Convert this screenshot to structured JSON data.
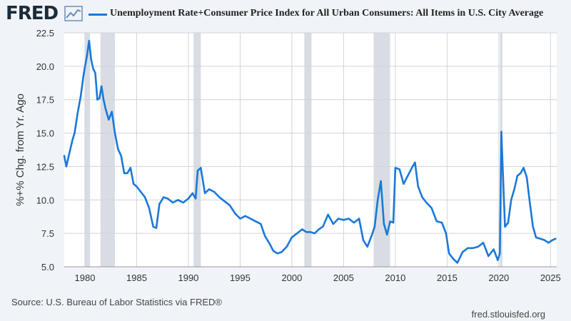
{
  "header": {
    "logo_text": "FRED",
    "logo_icon": "line-chart-icon",
    "title": "Unemployment Rate+Consumer Price Index for All Urban Consumers: All Items in U.S. City Average"
  },
  "footer": {
    "source": "Source: U.S. Bureau of Labor Statistics via FRED®",
    "site": "fred.stlouisfed.org"
  },
  "colors": {
    "line": "#1a78d8",
    "recession": "#d9dde3",
    "grid": "#cfd5dc",
    "background": "#f0f4f8",
    "plot_bg": "#ffffff"
  },
  "chart_data": {
    "type": "line",
    "title": "Unemployment Rate+Consumer Price Index for All Urban Consumers: All Items in U.S. City Average",
    "xlabel": "",
    "ylabel": "%+% Chg. from Yr. Ago",
    "xlim": [
      1978.0,
      2025.6
    ],
    "ylim": [
      5.0,
      22.5
    ],
    "yticks": [
      "5.0",
      "7.5",
      "10.0",
      "12.5",
      "15.0",
      "17.5",
      "20.0",
      "22.5"
    ],
    "xticks": [
      "1980",
      "1985",
      "1990",
      "1995",
      "2000",
      "2005",
      "2010",
      "2015",
      "2020",
      "2025"
    ],
    "grid": true,
    "recessions": [
      [
        1980.0,
        1980.5
      ],
      [
        1981.5,
        1982.9
      ],
      [
        1990.5,
        1991.2
      ],
      [
        2001.2,
        2001.9
      ],
      [
        2007.9,
        2009.5
      ],
      [
        2020.1,
        2020.35
      ]
    ],
    "series": [
      {
        "x": [
          1978.0,
          1978.2,
          1978.5,
          1978.8,
          1979.0,
          1979.3,
          1979.6,
          1979.9,
          1980.2,
          1980.4,
          1980.6,
          1980.8,
          1981.0,
          1981.2,
          1981.4,
          1981.6,
          1981.8,
          1982.0,
          1982.3,
          1982.6,
          1982.9,
          1983.2,
          1983.5,
          1983.8,
          1984.1,
          1984.4,
          1984.7,
          1985.0,
          1985.4,
          1985.8,
          1986.2,
          1986.6,
          1986.9,
          1987.2,
          1987.6,
          1988.0,
          1988.5,
          1989.0,
          1989.5,
          1990.0,
          1990.4,
          1990.7,
          1990.9,
          1991.2,
          1991.6,
          1992.0,
          1992.5,
          1993.0,
          1993.5,
          1994.0,
          1994.5,
          1995.0,
          1995.5,
          1996.0,
          1996.5,
          1997.0,
          1997.4,
          1997.8,
          1998.2,
          1998.6,
          1999.0,
          1999.5,
          2000.0,
          2000.5,
          2001.0,
          2001.4,
          2001.8,
          2002.2,
          2002.6,
          2003.0,
          2003.5,
          2004.0,
          2004.5,
          2005.0,
          2005.5,
          2006.0,
          2006.5,
          2006.9,
          2007.3,
          2007.7,
          2008.0,
          2008.3,
          2008.6,
          2008.9,
          2009.2,
          2009.5,
          2009.8,
          2010.0,
          2010.4,
          2010.8,
          2011.2,
          2011.6,
          2011.9,
          2012.2,
          2012.6,
          2013.0,
          2013.5,
          2014.0,
          2014.5,
          2014.9,
          2015.2,
          2015.6,
          2016.0,
          2016.5,
          2017.0,
          2017.5,
          2018.0,
          2018.5,
          2019.0,
          2019.5,
          2019.9,
          2020.1,
          2020.25,
          2020.4,
          2020.6,
          2020.9,
          2021.2,
          2021.5,
          2021.8,
          2022.1,
          2022.4,
          2022.7,
          2023.0,
          2023.3,
          2023.6,
          2024.0,
          2024.4,
          2024.8,
          2025.2,
          2025.5
        ],
        "values": [
          13.3,
          12.5,
          13.5,
          14.5,
          15.0,
          16.5,
          17.8,
          19.5,
          20.8,
          21.9,
          20.5,
          19.8,
          19.5,
          17.5,
          17.6,
          18.5,
          17.5,
          16.8,
          16.0,
          16.6,
          15.0,
          13.8,
          13.3,
          12.0,
          12.0,
          12.4,
          11.2,
          11.0,
          10.6,
          10.2,
          9.4,
          8.0,
          7.9,
          9.7,
          10.2,
          10.1,
          9.8,
          10.0,
          9.8,
          10.1,
          10.5,
          10.1,
          12.2,
          12.4,
          10.5,
          10.8,
          10.6,
          10.2,
          9.9,
          9.6,
          9.0,
          8.6,
          8.8,
          8.6,
          8.4,
          8.2,
          7.3,
          6.8,
          6.2,
          6.0,
          6.1,
          6.5,
          7.2,
          7.5,
          7.8,
          7.6,
          7.6,
          7.5,
          7.8,
          8.0,
          8.9,
          8.2,
          8.6,
          8.5,
          8.6,
          8.3,
          8.6,
          7.0,
          6.5,
          7.3,
          8.0,
          10.0,
          11.4,
          8.2,
          7.4,
          8.4,
          8.3,
          12.4,
          12.3,
          11.2,
          11.8,
          12.4,
          12.8,
          11.0,
          10.2,
          9.8,
          9.4,
          8.4,
          8.3,
          7.5,
          6.0,
          5.6,
          5.3,
          6.1,
          6.4,
          6.4,
          6.5,
          6.8,
          5.8,
          6.3,
          5.5,
          6.0,
          15.1,
          12.0,
          8.0,
          8.3,
          10.0,
          10.8,
          11.8,
          12.0,
          12.4,
          11.7,
          9.8,
          8.0,
          7.2,
          7.1,
          7.0,
          6.8,
          7.0,
          7.1
        ]
      }
    ]
  }
}
